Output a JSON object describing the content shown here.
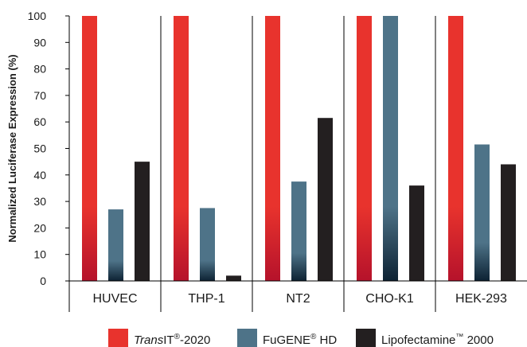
{
  "chart_data": {
    "type": "bar",
    "ylabel": "Normalized Luciferase Expression (%)",
    "xlabel": "",
    "ylim": [
      0,
      100
    ],
    "yticks": [
      "0",
      "10",
      "20",
      "30",
      "40",
      "50",
      "60",
      "70",
      "80",
      "90",
      "100"
    ],
    "categories": [
      "HUVEC",
      "THP-1",
      "NT2",
      "CHO-K1",
      "HEK-293"
    ],
    "series": [
      {
        "name_italic": "Trans",
        "name_rest": "IT",
        "name_sup": "®",
        "name_tail": "-2020",
        "color": "#e8332d",
        "color_dark": "#b5122b",
        "values": [
          100,
          100,
          100,
          100,
          100
        ]
      },
      {
        "name_rest": "FuGENE",
        "name_sup": "®",
        "name_tail": " HD",
        "color": "#4e7388",
        "color_dark": "#0d2233",
        "values": [
          27,
          27.5,
          37.5,
          100,
          51.5
        ]
      },
      {
        "name_rest": "Lipofectamine",
        "name_sup": "™",
        "name_tail": " 2000",
        "color": "#231f20",
        "color_dark": "#231f20",
        "values": [
          45,
          2,
          61.5,
          36,
          44
        ]
      }
    ],
    "grid": false,
    "legend_position": "bottom"
  }
}
